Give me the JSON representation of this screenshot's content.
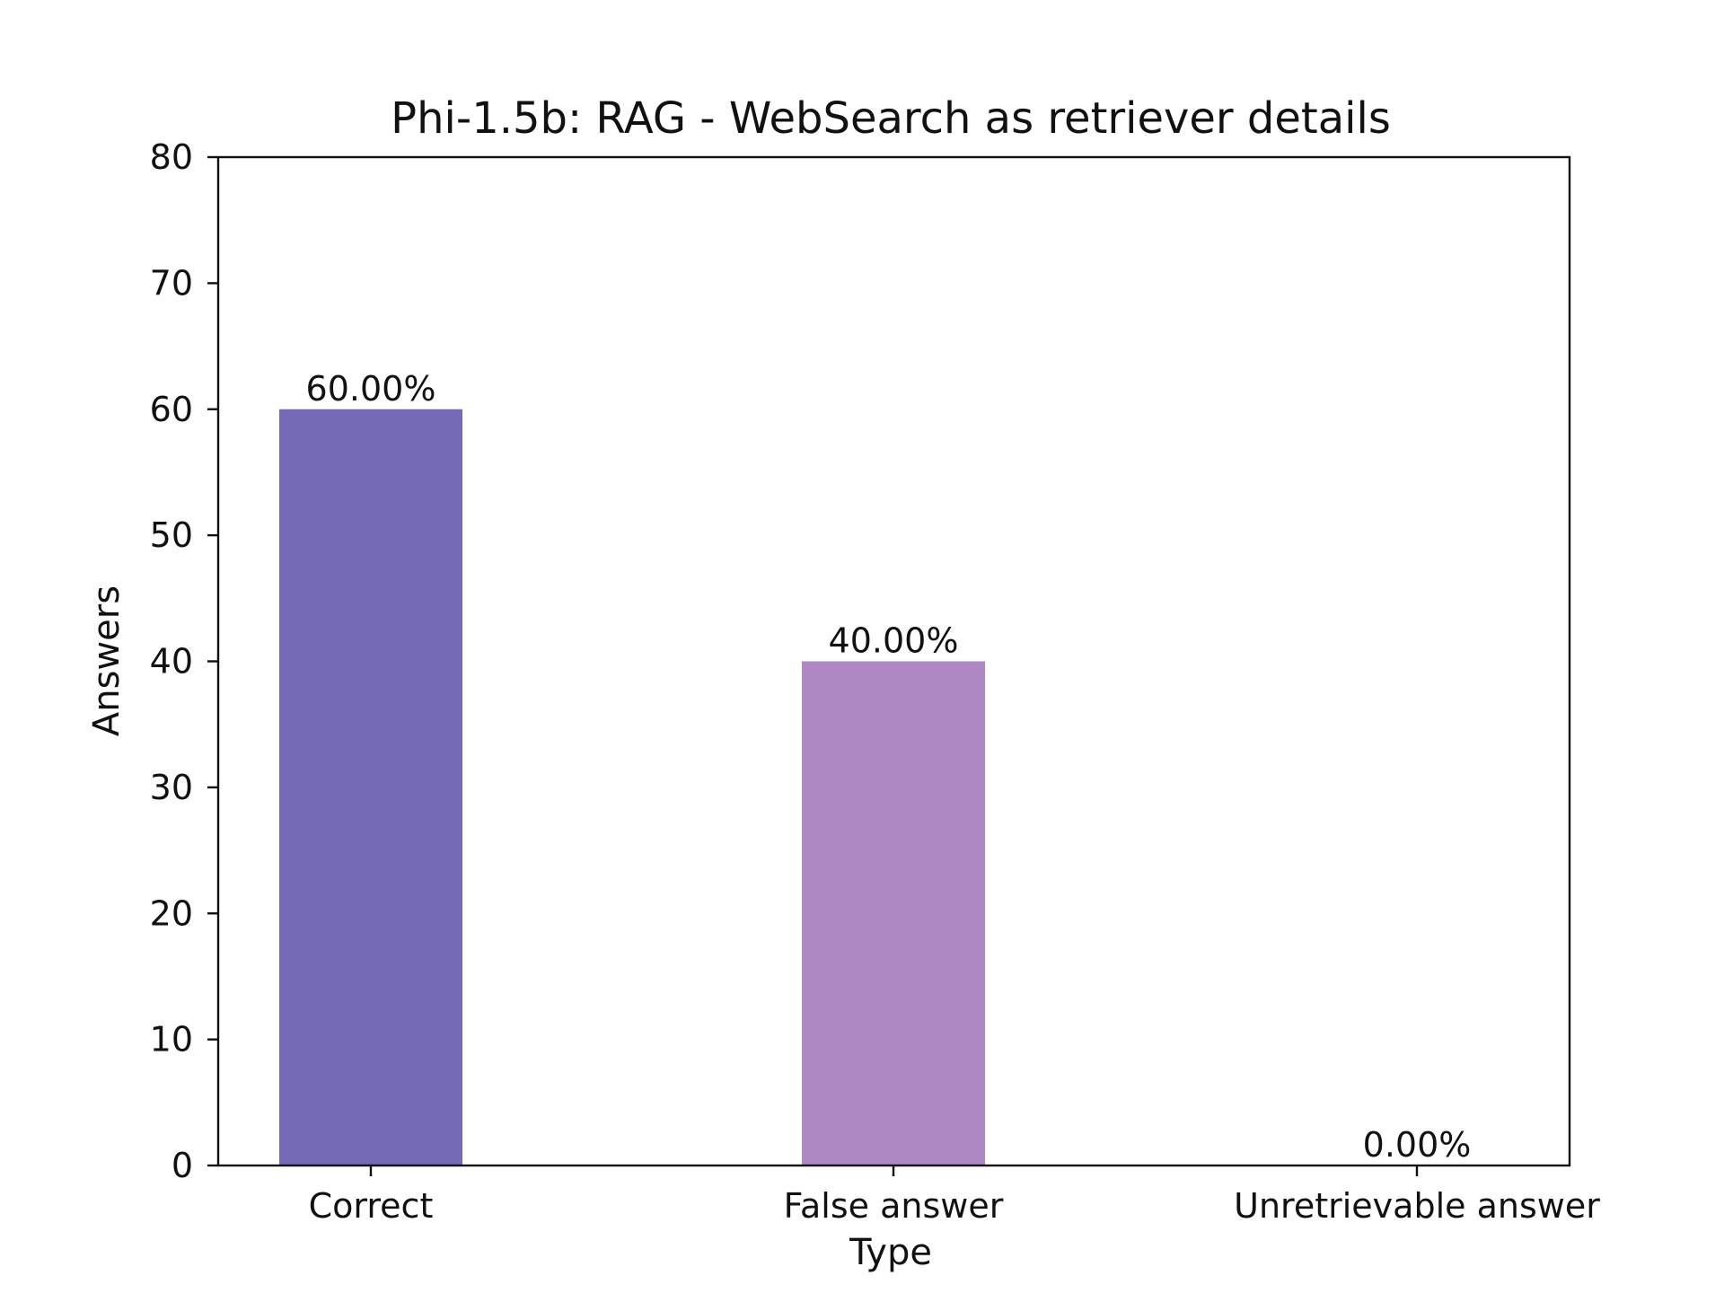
{
  "chart_data": {
    "type": "bar",
    "title": "Phi-1.5b: RAG - WebSearch as retriever details",
    "xlabel": "Type",
    "ylabel": "Answers",
    "categories": [
      "Correct",
      "False answer",
      "Unretrievable answer"
    ],
    "values": [
      60,
      40,
      0
    ],
    "value_labels": [
      "60.00%",
      "40.00%",
      "0.00%"
    ],
    "ylim": [
      0,
      80
    ],
    "yticks": [
      0,
      10,
      20,
      30,
      40,
      50,
      60,
      70,
      80
    ],
    "colors": [
      "#756bb6",
      "#ad88c5",
      "#d9c8e8"
    ],
    "grid": false,
    "legend": "none"
  }
}
